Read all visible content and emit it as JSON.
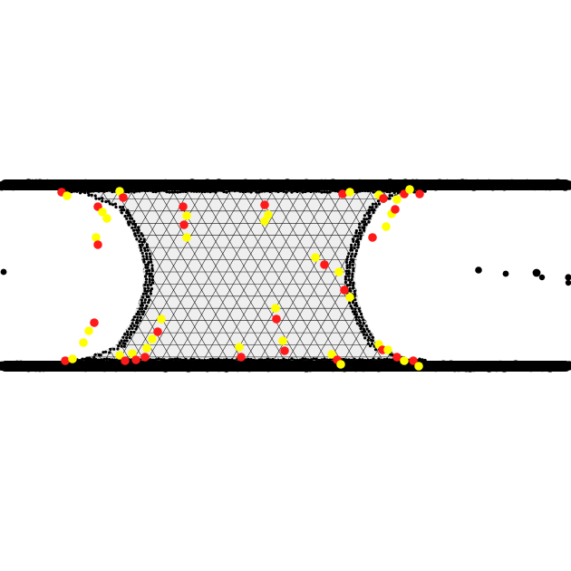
{
  "colors": {
    "background": "#ffffff",
    "mesh_fill": "#efefef",
    "mesh_edge": "#111111",
    "plate": "#000000",
    "particle": "#000000",
    "defect_five": "#ff1a1a",
    "defect_seven": "#ffff00"
  },
  "scene": {
    "plates": [
      "top-plate",
      "bottom-plate"
    ],
    "mesh": "triangulated-bridge",
    "defect_types": [
      "five-fold",
      "seven-fold"
    ]
  }
}
